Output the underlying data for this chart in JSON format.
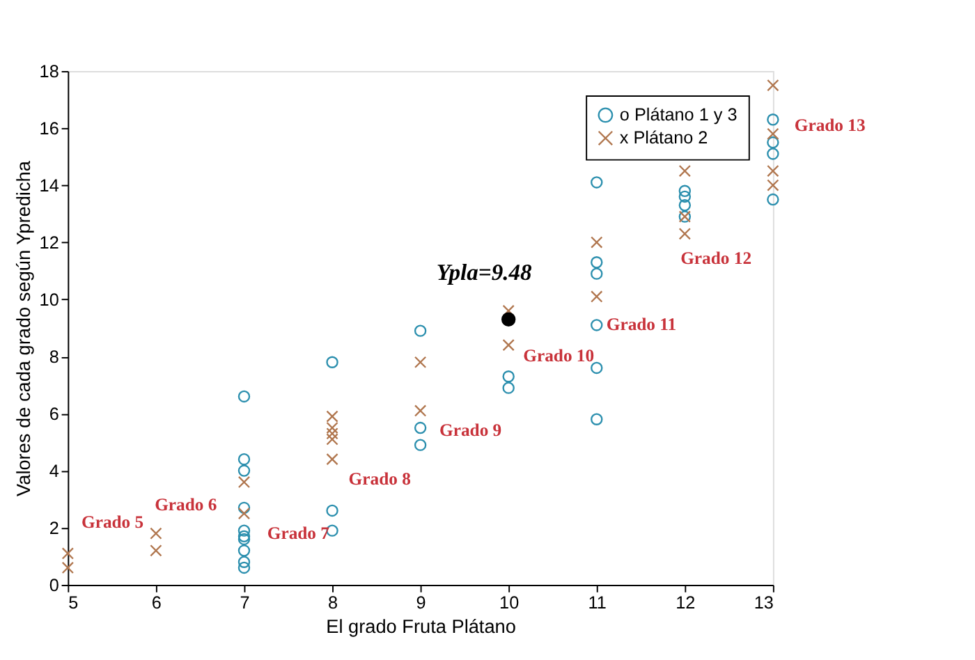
{
  "chart_data": {
    "type": "scatter",
    "xlabel": "El grado Fruta Plátano",
    "ylabel": "Valores de cada grado según Ypredicha",
    "xlim": [
      5,
      13
    ],
    "xticks": [
      5,
      6,
      7,
      8,
      9,
      10,
      11,
      12,
      13
    ],
    "ylim": [
      0,
      18
    ],
    "yticks": [
      0,
      2,
      4,
      6,
      8,
      10,
      12,
      14,
      16,
      18
    ],
    "grid": false,
    "legend": "top right",
    "series": [
      {
        "name": "o Plátano 1 y 3",
        "color": "#2b8fae",
        "marker": "circle",
        "x": [
          7,
          7,
          7,
          7,
          7,
          7,
          7,
          7,
          7,
          7,
          8,
          8,
          8,
          9,
          9,
          9,
          10,
          10,
          11,
          11,
          11,
          11,
          11,
          11,
          12,
          12,
          12,
          12,
          13,
          13,
          13,
          13
        ],
        "values": [
          6.6,
          4.4,
          4.0,
          2.7,
          1.9,
          1.7,
          1.6,
          1.2,
          0.8,
          0.6,
          7.8,
          2.6,
          1.9,
          8.9,
          5.5,
          4.9,
          7.3,
          6.9,
          14.1,
          11.3,
          10.9,
          9.1,
          7.6,
          5.8,
          13.8,
          13.6,
          13.3,
          12.9,
          16.3,
          15.5,
          15.1,
          13.5
        ]
      },
      {
        "name": "x Plátano 2",
        "color": "#b0764e",
        "marker": "cross",
        "x": [
          5,
          5,
          6,
          6,
          7,
          7,
          8,
          8,
          8,
          8,
          8,
          9,
          9,
          10,
          10,
          11,
          11,
          12,
          12,
          12,
          13,
          13,
          13,
          13
        ],
        "values": [
          1.1,
          0.6,
          1.8,
          1.2,
          3.6,
          2.5,
          5.9,
          5.5,
          5.3,
          5.1,
          4.4,
          7.8,
          6.1,
          9.6,
          8.4,
          12.0,
          10.1,
          14.5,
          12.9,
          12.3,
          17.5,
          15.8,
          14.5,
          14.0
        ]
      },
      {
        "color": "#000000",
        "marker": "circle",
        "x": [
          10
        ],
        "values": [
          9.3
        ]
      }
    ],
    "annotations": [
      "Ypla=9.48",
      "Grado 5",
      "Grado 6",
      "Grado 7",
      "Grado 8",
      "Grado 9",
      "Grado 10",
      "Grado 11",
      "Grado 12",
      "Grado 13"
    ]
  }
}
